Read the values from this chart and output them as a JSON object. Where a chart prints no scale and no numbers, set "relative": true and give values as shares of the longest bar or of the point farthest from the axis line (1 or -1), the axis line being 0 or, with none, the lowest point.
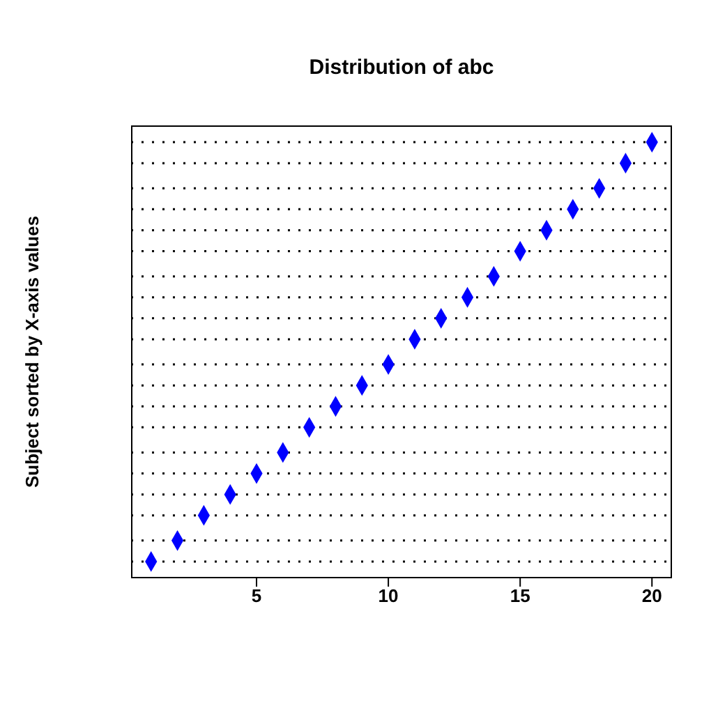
{
  "chart_data": {
    "type": "scatter",
    "title": "Distribution of abc",
    "ylabel": "Subject sorted by X-axis values",
    "relative": true,
    "x": [
      1,
      2,
      3,
      4,
      5,
      6,
      7,
      8,
      9,
      10,
      11,
      12,
      13,
      14,
      15,
      16,
      17,
      18,
      19,
      20
    ],
    "values": [
      0,
      0.05,
      0.11,
      0.16,
      0.21,
      0.26,
      0.32,
      0.37,
      0.42,
      0.47,
      0.53,
      0.58,
      0.63,
      0.68,
      0.74,
      0.79,
      0.84,
      0.89,
      0.95,
      1
    ],
    "color": "#0000ff",
    "marker": "diamond",
    "xlim": [
      0.24,
      20.76
    ],
    "xticks": [
      5,
      10,
      15,
      20
    ],
    "grid": "y",
    "tick_labels": "x"
  }
}
